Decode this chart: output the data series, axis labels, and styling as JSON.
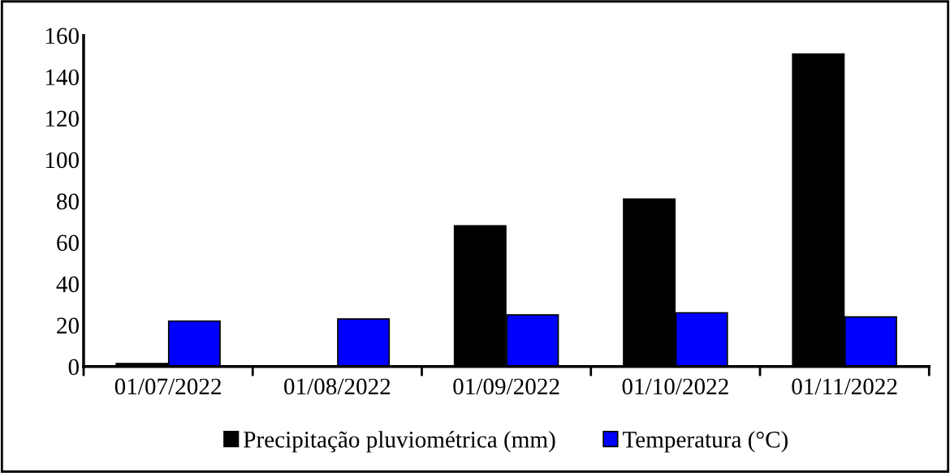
{
  "chart_data": {
    "type": "bar",
    "categories": [
      "01/07/2022",
      "01/08/2022",
      "01/09/2022",
      "01/10/2022",
      "01/11/2022"
    ],
    "series": [
      {
        "name": "Precipitação pluviométrica (mm)",
        "color": "#000000",
        "values": [
          1.5,
          null,
          68,
          81,
          151
        ]
      },
      {
        "name": "Temperatura (°C)",
        "color": "#0000ff",
        "values": [
          22,
          23,
          25,
          26,
          24
        ]
      }
    ],
    "ylim": [
      0,
      160
    ],
    "yticks": [
      0,
      20,
      40,
      60,
      80,
      100,
      120,
      140,
      160
    ],
    "grid": false,
    "legend": "bottom"
  }
}
